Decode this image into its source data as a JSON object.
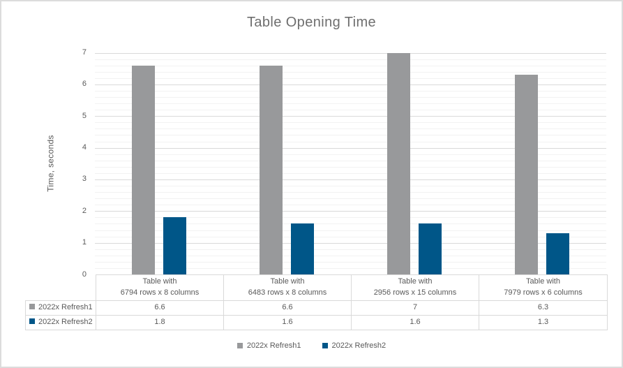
{
  "chart_data": {
    "type": "bar",
    "title": "Table Opening Time",
    "ylabel": "Time, seconds",
    "xlabel": "",
    "categories": [
      [
        "Table with",
        "6794 rows x 8 columns"
      ],
      [
        "Table with",
        "6483 rows x 8 columns"
      ],
      [
        "Table with",
        "2956 rows x 15 columns"
      ],
      [
        "Table with",
        "7979 rows x 6 columns"
      ]
    ],
    "series": [
      {
        "name": "2022x Refresh1",
        "color": "#98999B",
        "values": [
          6.6,
          6.6,
          7,
          6.3
        ],
        "display_values": [
          "6.6",
          "6.6",
          "7",
          "6.3"
        ]
      },
      {
        "name": "2022x Refresh2",
        "color": "#005688",
        "values": [
          1.8,
          1.6,
          1.6,
          1.3
        ],
        "display_values": [
          "1.8",
          "1.6",
          "1.6",
          "1.3"
        ]
      }
    ],
    "ylim": [
      0,
      7
    ],
    "y_major_step": 1,
    "y_minor_step": 0.2,
    "y_tick_labels": [
      "0",
      "1",
      "2",
      "3",
      "4",
      "5",
      "6",
      "7"
    ],
    "grid": true,
    "legend_position": "bottom",
    "data_table_shown": true,
    "colors": {
      "major_gridline": "#D9D9D9",
      "minor_gridline": "#F2F2F2",
      "axis_text": "#595959",
      "title_text": "#6E6E6E",
      "table_border": "#D9D9D9"
    }
  }
}
